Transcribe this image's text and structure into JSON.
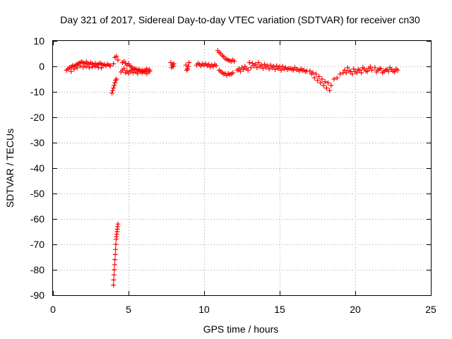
{
  "chart_data": {
    "type": "scatter",
    "title": "Day 321 of 2017, Sidereal Day-to-day VTEC variation (SDTVAR) for receiver cn30",
    "xlabel": "GPS time / hours",
    "ylabel": "SDTVAR / TECUs",
    "xlim": [
      0,
      25
    ],
    "ylim": [
      -90,
      10
    ],
    "xticks": [
      0,
      5,
      10,
      15,
      20,
      25
    ],
    "yticks": [
      10,
      0,
      -10,
      -20,
      -30,
      -40,
      -50,
      -60,
      -70,
      -80,
      -90
    ],
    "grid": true,
    "marker": "+",
    "color": "#ff0000",
    "series": [
      {
        "name": "SDTVAR",
        "x": [
          0.9,
          1.0,
          1.1,
          1.2,
          1.3,
          1.4,
          1.5,
          1.6,
          1.7,
          1.8,
          1.9,
          2.0,
          2.1,
          2.2,
          2.3,
          2.4,
          2.5,
          2.6,
          2.7,
          2.8,
          2.9,
          3.0,
          3.1,
          3.2,
          3.3,
          3.4,
          3.5,
          3.6,
          3.7,
          3.8,
          1.2,
          1.4,
          1.6,
          1.8,
          2.0,
          2.2,
          2.4,
          2.6,
          2.8,
          3.0,
          3.2,
          3.9,
          3.95,
          4.0,
          4.05,
          4.1,
          4.15,
          4.2,
          4.0,
          4.1,
          4.2,
          4.3,
          4.0,
          4.02,
          4.04,
          4.06,
          4.08,
          4.1,
          4.12,
          4.14,
          4.16,
          4.18,
          4.2,
          4.22,
          4.24,
          4.26,
          4.28,
          4.3,
          4.6,
          4.7,
          4.8,
          4.9,
          5.0,
          5.1,
          5.2,
          5.3,
          5.4,
          5.5,
          5.6,
          5.7,
          5.8,
          5.9,
          6.0,
          6.1,
          6.2,
          6.3,
          6.4,
          4.5,
          4.6,
          4.7,
          4.8,
          4.9,
          5.0,
          5.1,
          5.2,
          5.3,
          5.4,
          5.5,
          5.6,
          5.7,
          5.8,
          5.9,
          6.0,
          6.1,
          6.2,
          6.3,
          6.4,
          7.8,
          7.9,
          8.0,
          7.85,
          7.95,
          8.8,
          8.9,
          9.0,
          8.85,
          8.95,
          9.5,
          9.6,
          9.7,
          9.8,
          9.9,
          10.0,
          10.1,
          10.2,
          10.3,
          10.4,
          10.5,
          10.6,
          10.7,
          10.8,
          10.9,
          11.0,
          11.1,
          11.2,
          11.3,
          11.4,
          11.5,
          11.6,
          11.7,
          11.8,
          11.9,
          12.0,
          11.0,
          11.1,
          11.2,
          11.3,
          11.4,
          11.5,
          11.6,
          11.7,
          11.8,
          11.9,
          12.2,
          12.3,
          12.4,
          12.5,
          12.6,
          12.7,
          12.8,
          12.9,
          13.0,
          13.2,
          13.4,
          13.6,
          13.8,
          14.0,
          14.2,
          14.4,
          14.6,
          14.8,
          15.0,
          15.2,
          15.4,
          15.6,
          15.8,
          16.0,
          16.2,
          16.4,
          16.6,
          16.8,
          13.1,
          13.3,
          13.5,
          13.7,
          13.9,
          14.1,
          14.3,
          14.5,
          14.7,
          14.9,
          15.1,
          15.3,
          15.5,
          15.7,
          15.9,
          16.1,
          16.3,
          16.5,
          16.7,
          17.0,
          17.2,
          17.4,
          17.6,
          17.8,
          18.0,
          18.2,
          18.4,
          18.6,
          18.8,
          19.0,
          19.2,
          17.1,
          17.3,
          17.5,
          17.7,
          17.9,
          18.1,
          18.3,
          19.3,
          19.5,
          19.7,
          19.9,
          20.1,
          20.3,
          20.5,
          20.7,
          20.9,
          21.1,
          19.4,
          19.6,
          19.8,
          20.0,
          20.2,
          20.4,
          20.6,
          20.8,
          21.0,
          21.3,
          21.5,
          21.7,
          21.9,
          22.1,
          22.3,
          22.5,
          22.7,
          22.8,
          21.4,
          21.6,
          21.8,
          22.0,
          22.2,
          22.4,
          22.6
        ],
        "y": [
          -1.5,
          -1.0,
          -0.5,
          -0.2,
          0.3,
          0.0,
          0.5,
          0.8,
          1.2,
          1.5,
          1.8,
          1.5,
          1.0,
          1.8,
          1.2,
          0.8,
          1.5,
          1.0,
          0.5,
          1.2,
          0.6,
          0.8,
          1.3,
          1.0,
          0.5,
          0.8,
          0.2,
          0.9,
          0.5,
          0.2,
          -2.0,
          -1.0,
          -0.5,
          0.2,
          -0.3,
          0.0,
          -0.5,
          -0.2,
          0.0,
          -0.4,
          -0.6,
          -10.5,
          -9.5,
          -8.5,
          -7.5,
          -6.5,
          -5.5,
          -5.0,
          1.0,
          3.5,
          4.0,
          2.5,
          -86,
          -84,
          -82,
          -80,
          -78,
          -76,
          -74,
          -72,
          -70,
          -68,
          -67,
          -66,
          -65,
          -64,
          -63,
          -62,
          1.5,
          2.0,
          1.2,
          0.5,
          1.0,
          0.2,
          -0.3,
          -0.8,
          -1.2,
          -1.0,
          -1.5,
          -1.2,
          -1.8,
          -1.5,
          -2.0,
          -1.5,
          -1.0,
          -2.2,
          -1.4,
          -2.2,
          -1.5,
          -0.8,
          -2.5,
          -1.8,
          -2.8,
          -2.0,
          -1.5,
          -2.5,
          -1.0,
          -2.2,
          -2.8,
          -1.5,
          -2.0,
          -2.5,
          -1.8,
          -2.2,
          -2.8,
          -1.5,
          -2.0,
          1.5,
          0.5,
          1.0,
          -0.5,
          0.0,
          0.5,
          -1.0,
          1.5,
          -1.5,
          0.0,
          0.5,
          1.2,
          0.8,
          0.2,
          1.0,
          0.5,
          1.0,
          0.3,
          0.8,
          -0.2,
          0.5,
          0.0,
          0.8,
          0.3,
          6.2,
          5.5,
          5.0,
          4.2,
          3.8,
          3.0,
          2.8,
          2.5,
          2.2,
          2.0,
          2.5,
          2.0,
          -1.5,
          -2.0,
          -2.5,
          -3.0,
          -2.8,
          -3.5,
          -2.8,
          -3.2,
          -3.0,
          -2.5,
          -1.5,
          -1.0,
          -2.0,
          -0.5,
          -1.2,
          0.0,
          -0.8,
          -1.5,
          1.5,
          1.2,
          0.8,
          1.5,
          0.5,
          0.8,
          0.3,
          0.5,
          0.0,
          0.2,
          -0.2,
          0.0,
          -0.5,
          -0.8,
          -1.0,
          -0.5,
          -1.2,
          -1.0,
          -1.5,
          -1.8,
          -0.5,
          0.2,
          -0.5,
          0.0,
          -0.8,
          -0.3,
          -1.0,
          -0.5,
          -1.2,
          -0.8,
          -1.5,
          -1.0,
          -1.2,
          -0.8,
          -1.5,
          -1.2,
          -1.8,
          -1.5,
          -2.0,
          -1.8,
          -2.5,
          -3.0,
          -4.0,
          -5.0,
          -6.0,
          -6.5,
          -7.5,
          -5.0,
          -4.5,
          -3.0,
          -2.5,
          -3.0,
          -4.5,
          -5.5,
          -6.5,
          -7.5,
          -8.5,
          -9.5,
          -1.5,
          -0.5,
          -2.0,
          -1.0,
          -2.5,
          -1.5,
          -0.5,
          -1.8,
          -0.8,
          -1.5,
          -2.5,
          -1.8,
          -3.0,
          -2.0,
          -1.2,
          -2.5,
          -1.0,
          -2.0,
          -0.2,
          -0.5,
          -1.5,
          -0.8,
          -2.0,
          -1.2,
          -0.5,
          -1.8,
          -1.0,
          -1.5,
          -2.2,
          -1.0,
          -2.5,
          -1.5,
          -2.0,
          -1.2,
          -2.2
        ]
      }
    ]
  }
}
